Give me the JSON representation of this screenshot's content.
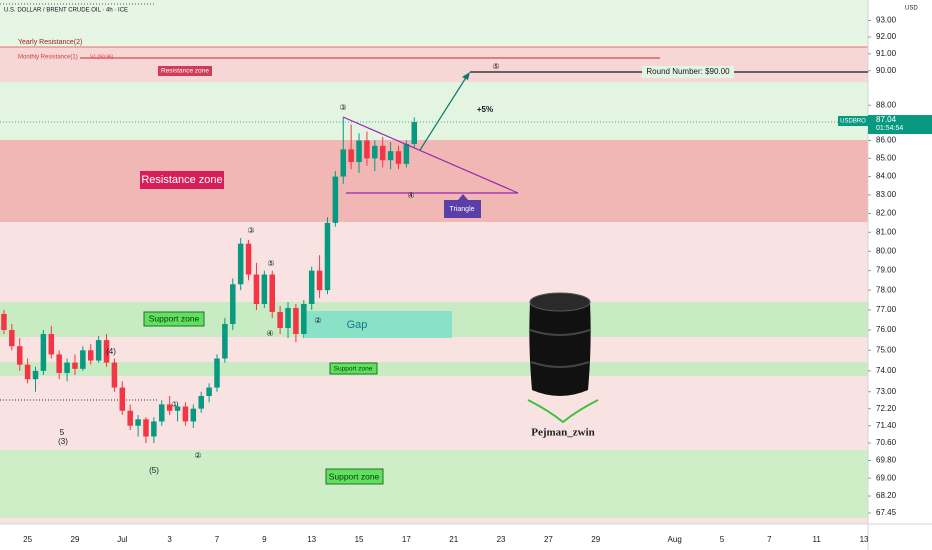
{
  "header": "U.S. DOLLAR / BRENT CRUDE OIL · 4h · ICE",
  "currency": "USD",
  "chart_data": {
    "type": "candlestick",
    "categories": [
      null,
      null,
      null,
      "25",
      null,
      null,
      null,
      null,
      null,
      "29",
      null,
      null,
      null,
      null,
      null,
      "Jul",
      null,
      null,
      null,
      null,
      null,
      "3",
      null,
      null,
      null,
      null,
      null,
      "7",
      null,
      null,
      null,
      null,
      null,
      "9",
      null,
      null,
      null,
      null,
      null,
      "13",
      null,
      null,
      null,
      null,
      null,
      "15",
      null,
      null,
      null,
      null,
      null,
      "17",
      null,
      null,
      null,
      null,
      null,
      "21",
      null,
      null,
      null,
      null,
      null,
      "23",
      null,
      null,
      null,
      null,
      null,
      "27",
      null,
      null,
      null,
      null,
      null,
      "29",
      null,
      null,
      null,
      null,
      null,
      null,
      null,
      null,
      null,
      "Aug",
      null,
      null,
      null,
      null,
      null,
      "5",
      null,
      null,
      null,
      null,
      null,
      "7",
      null,
      null,
      null,
      null,
      null,
      "11",
      null,
      null,
      null,
      null,
      null,
      "13"
    ],
    "open": [
      76.8,
      76.0,
      75.2,
      74.3,
      73.6,
      74.0,
      75.8,
      74.8,
      73.9,
      74.4,
      74.1,
      75.0,
      74.5,
      75.5,
      74.4,
      73.2,
      72.1,
      71.4,
      71.7,
      70.9,
      71.6,
      72.4,
      72.1,
      72.3,
      71.6,
      72.2,
      72.8,
      73.2,
      74.6,
      76.3,
      78.3,
      80.4,
      78.8,
      77.3,
      78.8,
      76.9,
      76.1,
      77.1,
      75.8,
      77.3,
      79.0,
      78.0,
      81.5,
      84.0,
      85.5,
      84.8,
      86.0,
      85.0,
      85.7,
      84.9,
      85.4,
      84.7,
      85.8,
      null,
      null,
      null,
      null,
      null,
      null,
      null,
      null,
      null,
      null,
      null,
      null,
      null,
      null,
      null,
      null,
      null,
      null,
      null,
      null,
      null,
      null,
      null,
      null,
      null,
      null,
      null,
      null,
      null,
      null,
      null,
      null,
      null,
      null,
      null,
      null,
      null,
      null,
      null,
      null,
      null,
      null,
      null,
      null,
      null,
      null,
      null,
      null,
      null,
      null,
      null,
      null,
      null,
      null,
      null,
      null,
      null
    ],
    "high": [
      77.0,
      76.3,
      75.6,
      74.6,
      74.2,
      76.0,
      76.2,
      75.0,
      74.6,
      74.8,
      75.2,
      75.3,
      75.7,
      75.8,
      74.6,
      73.5,
      72.4,
      71.9,
      71.8,
      71.8,
      72.6,
      72.8,
      72.5,
      72.5,
      72.4,
      73.0,
      73.4,
      74.8,
      76.6,
      78.6,
      80.7,
      80.6,
      79.4,
      79.0,
      79.0,
      77.2,
      77.4,
      77.3,
      77.5,
      79.2,
      79.8,
      81.8,
      84.3,
      87.3,
      86.9,
      86.4,
      86.5,
      86.0,
      86.2,
      85.9,
      85.7,
      86.0,
      87.3,
      null,
      null,
      null,
      null,
      null,
      null,
      null,
      null,
      null,
      null,
      null,
      null,
      null,
      null,
      null,
      null,
      null,
      null,
      null,
      null,
      null,
      null,
      null,
      null,
      null,
      null,
      null,
      null,
      null,
      null,
      null,
      null,
      null,
      null,
      null,
      null,
      null,
      null,
      null,
      null,
      null,
      null,
      null,
      null,
      null,
      null,
      null,
      null,
      null,
      null,
      null,
      null,
      null,
      null,
      null,
      null,
      null
    ],
    "low": [
      75.8,
      75.0,
      74.0,
      73.4,
      73.0,
      73.8,
      74.6,
      73.6,
      73.5,
      73.8,
      74.0,
      74.3,
      74.4,
      74.2,
      73.0,
      71.9,
      71.2,
      70.9,
      70.6,
      70.6,
      71.4,
      71.9,
      71.6,
      71.4,
      71.3,
      72.0,
      72.5,
      73.0,
      74.4,
      76.0,
      78.0,
      78.5,
      77.0,
      77.1,
      76.6,
      75.8,
      75.6,
      75.4,
      75.6,
      77.0,
      77.6,
      77.8,
      81.3,
      83.6,
      84.4,
      84.2,
      84.6,
      84.3,
      84.5,
      84.4,
      84.4,
      84.5,
      85.6,
      null,
      null,
      null,
      null,
      null,
      null,
      null,
      null,
      null,
      null,
      null,
      null,
      null,
      null,
      null,
      null,
      null,
      null,
      null,
      null,
      null,
      null,
      null,
      null,
      null,
      null,
      null,
      null,
      null,
      null,
      null,
      null,
      null,
      null,
      null,
      null,
      null,
      null,
      null,
      null,
      null,
      null,
      null,
      null,
      null,
      null,
      null,
      null,
      null,
      null,
      null,
      null,
      null,
      null,
      null,
      null,
      null
    ],
    "close": [
      76.0,
      75.2,
      74.3,
      73.6,
      74.0,
      75.8,
      74.8,
      73.9,
      74.4,
      74.1,
      75.0,
      74.5,
      75.5,
      74.4,
      73.2,
      72.1,
      71.4,
      71.7,
      70.9,
      71.6,
      72.4,
      72.1,
      72.3,
      71.6,
      72.2,
      72.8,
      73.2,
      74.6,
      76.3,
      78.3,
      80.4,
      78.8,
      77.3,
      78.8,
      76.9,
      76.1,
      77.1,
      75.8,
      77.3,
      79.0,
      78.0,
      81.5,
      84.0,
      85.5,
      84.8,
      86.0,
      85.0,
      85.7,
      84.9,
      85.4,
      84.7,
      85.8,
      87.04,
      null,
      null,
      null,
      null,
      null,
      null,
      null,
      null,
      null,
      null,
      null,
      null,
      null,
      null,
      null,
      null,
      null,
      null,
      null,
      null,
      null,
      null,
      null,
      null,
      null,
      null,
      null,
      null,
      null,
      null,
      null,
      null,
      null,
      null,
      null,
      null,
      null,
      null,
      null,
      null,
      null,
      null,
      null,
      null,
      null,
      null,
      null,
      null,
      null,
      null,
      null,
      null,
      null,
      null,
      null,
      null,
      null
    ],
    "up_color": "#089981",
    "down_color": "#f23645",
    "ylim": [
      67.23,
      94.25
    ],
    "log_scale": true,
    "yticks": [
      {
        "value": 93,
        "label": "93.00"
      },
      {
        "value": 92,
        "label": "92.00"
      },
      {
        "value": 91,
        "label": "91.00"
      },
      {
        "value": 90,
        "label": "90.00"
      },
      {
        "value": 88,
        "label": "88.00"
      },
      {
        "value": 86,
        "label": "86.00"
      },
      {
        "value": 85,
        "label": "85.00"
      },
      {
        "value": 84,
        "label": "84.00"
      },
      {
        "value": 83,
        "label": "83.00"
      },
      {
        "value": 82,
        "label": "82.00"
      },
      {
        "value": 81,
        "label": "81.00"
      },
      {
        "value": 80,
        "label": "80.00"
      },
      {
        "value": 79,
        "label": "79.00"
      },
      {
        "value": 78,
        "label": "78.00"
      },
      {
        "value": 77,
        "label": "77.00"
      },
      {
        "value": 76,
        "label": "76.00"
      },
      {
        "value": 75,
        "label": "75.00"
      },
      {
        "value": 74,
        "label": "74.00"
      },
      {
        "value": 73,
        "label": "73.00"
      },
      {
        "value": 72.2,
        "label": "72.20"
      },
      {
        "value": 71.4,
        "label": "71.40"
      },
      {
        "value": 70.6,
        "label": "70.60"
      },
      {
        "value": 69.8,
        "label": "69.80"
      },
      {
        "value": 69,
        "label": "69.00"
      },
      {
        "value": 68.2,
        "label": "68.20"
      },
      {
        "value": 67.45,
        "label": "67.45"
      }
    ],
    "grid": false,
    "symbol_tag": "USDBRO",
    "last_price": 87.04,
    "countdown": "01:54:54"
  },
  "annotations": {
    "yearly_resistance": "Yearly Resistance(2)",
    "monthly_resistance": "Monthly Resistance(1)",
    "s1": "S1 (90.96)",
    "resistance_small": "Resistance zone",
    "resistance_big": "Resistance zone",
    "round_number": "Round Number: $90.00",
    "gain": "+5%",
    "triangle": "Triangle",
    "gap": "Gap",
    "support_1": "Support zone",
    "support_2": "Support zone",
    "support_3": "Support zone",
    "author": "Pejman_zwin",
    "waves": [
      "③",
      "④",
      "⑤",
      "①",
      "②",
      "③",
      "⑤",
      "④",
      "②",
      "(4)",
      "(5)",
      "5",
      "(3)"
    ]
  }
}
